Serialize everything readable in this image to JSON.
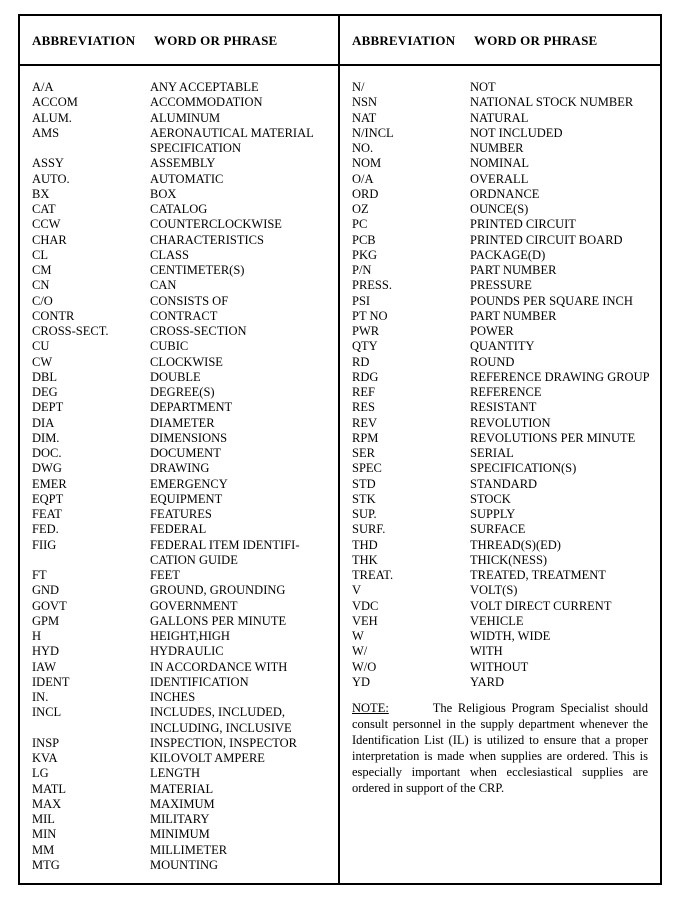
{
  "headers": {
    "abbr": "ABBREVIATION",
    "word": "WORD OR PHRASE"
  },
  "colors": {
    "background": "#ffffff",
    "text": "#000000",
    "rule": "#000000"
  },
  "left": [
    {
      "abbr": "A/A",
      "phrase": "ANY ACCEPTABLE"
    },
    {
      "abbr": "ACCOM",
      "phrase": "ACCOMMODATION"
    },
    {
      "abbr": "ALUM.",
      "phrase": "ALUMINUM"
    },
    {
      "abbr": "AMS",
      "phrase": "AERONAUTICAL MATERIAL SPECIFICATION"
    },
    {
      "abbr": "ASSY",
      "phrase": "ASSEMBLY"
    },
    {
      "abbr": "AUTO.",
      "phrase": "AUTOMATIC"
    },
    {
      "abbr": "BX",
      "phrase": "BOX"
    },
    {
      "abbr": "CAT",
      "phrase": "CATALOG"
    },
    {
      "abbr": "CCW",
      "phrase": "COUNTERCLOCKWISE"
    },
    {
      "abbr": "CHAR",
      "phrase": "CHARACTERISTICS"
    },
    {
      "abbr": "CL",
      "phrase": "CLASS"
    },
    {
      "abbr": "CM",
      "phrase": "CENTIMETER(S)"
    },
    {
      "abbr": "CN",
      "phrase": "CAN"
    },
    {
      "abbr": "C/O",
      "phrase": "CONSISTS OF"
    },
    {
      "abbr": "CONTR",
      "phrase": "CONTRACT"
    },
    {
      "abbr": "CROSS-SECT.",
      "phrase": "CROSS-SECTION"
    },
    {
      "abbr": "CU",
      "phrase": "CUBIC"
    },
    {
      "abbr": "CW",
      "phrase": "CLOCKWISE"
    },
    {
      "abbr": "DBL",
      "phrase": "DOUBLE"
    },
    {
      "abbr": "DEG",
      "phrase": "DEGREE(S)"
    },
    {
      "abbr": "DEPT",
      "phrase": "DEPARTMENT"
    },
    {
      "abbr": "DIA",
      "phrase": "DIAMETER"
    },
    {
      "abbr": "DIM.",
      "phrase": "DIMENSIONS"
    },
    {
      "abbr": "DOC.",
      "phrase": "DOCUMENT"
    },
    {
      "abbr": "DWG",
      "phrase": "DRAWING"
    },
    {
      "abbr": "EMER",
      "phrase": "EMERGENCY"
    },
    {
      "abbr": "EQPT",
      "phrase": "EQUIPMENT"
    },
    {
      "abbr": "FEAT",
      "phrase": "FEATURES"
    },
    {
      "abbr": "FED.",
      "phrase": "FEDERAL"
    },
    {
      "abbr": "FIIG",
      "phrase": "FEDERAL ITEM IDENTIFI- CATION GUIDE"
    },
    {
      "abbr": "FT",
      "phrase": "FEET"
    },
    {
      "abbr": "GND",
      "phrase": "GROUND, GROUNDING"
    },
    {
      "abbr": "GOVT",
      "phrase": "GOVERNMENT"
    },
    {
      "abbr": "GPM",
      "phrase": "GALLONS PER MINUTE"
    },
    {
      "abbr": "H",
      "phrase": "HEIGHT,HIGH"
    },
    {
      "abbr": "HYD",
      "phrase": "HYDRAULIC"
    },
    {
      "abbr": "IAW",
      "phrase": "IN ACCORDANCE WITH"
    },
    {
      "abbr": "IDENT",
      "phrase": "IDENTIFICATION"
    },
    {
      "abbr": "IN.",
      "phrase": "INCHES"
    },
    {
      "abbr": "INCL",
      "phrase": "INCLUDES, INCLUDED, INCLUDING, INCLUSIVE"
    },
    {
      "abbr": "INSP",
      "phrase": "INSPECTION, INSPECTOR"
    },
    {
      "abbr": "KVA",
      "phrase": "KILOVOLT AMPERE"
    },
    {
      "abbr": "LG",
      "phrase": "LENGTH"
    },
    {
      "abbr": "MATL",
      "phrase": "MATERIAL"
    },
    {
      "abbr": "MAX",
      "phrase": "MAXIMUM"
    },
    {
      "abbr": "MIL",
      "phrase": "MILITARY"
    },
    {
      "abbr": "MIN",
      "phrase": "MINIMUM"
    },
    {
      "abbr": "MM",
      "phrase": "MILLIMETER"
    },
    {
      "abbr": "MTG",
      "phrase": "MOUNTING"
    }
  ],
  "right": [
    {
      "abbr": "N/",
      "phrase": "NOT"
    },
    {
      "abbr": "NSN",
      "phrase": "NATIONAL STOCK NUMBER"
    },
    {
      "abbr": "NAT",
      "phrase": "NATURAL"
    },
    {
      "abbr": "N/INCL",
      "phrase": "NOT INCLUDED"
    },
    {
      "abbr": "NO.",
      "phrase": "NUMBER"
    },
    {
      "abbr": "NOM",
      "phrase": "NOMINAL"
    },
    {
      "abbr": "O/A",
      "phrase": "OVERALL"
    },
    {
      "abbr": "ORD",
      "phrase": "ORDNANCE"
    },
    {
      "abbr": "OZ",
      "phrase": "OUNCE(S)"
    },
    {
      "abbr": "PC",
      "phrase": "PRINTED CIRCUIT"
    },
    {
      "abbr": "PCB",
      "phrase": "PRINTED CIRCUIT BOARD"
    },
    {
      "abbr": "PKG",
      "phrase": "PACKAGE(D)"
    },
    {
      "abbr": "P/N",
      "phrase": "PART NUMBER"
    },
    {
      "abbr": "PRESS.",
      "phrase": "PRESSURE"
    },
    {
      "abbr": "PSI",
      "phrase": "POUNDS PER SQUARE INCH"
    },
    {
      "abbr": "PT NO",
      "phrase": "PART NUMBER"
    },
    {
      "abbr": "PWR",
      "phrase": "POWER"
    },
    {
      "abbr": "QTY",
      "phrase": "QUANTITY"
    },
    {
      "abbr": "RD",
      "phrase": "ROUND"
    },
    {
      "abbr": "RDG",
      "phrase": "REFERENCE DRAWING GROUP"
    },
    {
      "abbr": "REF",
      "phrase": "REFERENCE"
    },
    {
      "abbr": "RES",
      "phrase": "RESISTANT"
    },
    {
      "abbr": "REV",
      "phrase": "REVOLUTION"
    },
    {
      "abbr": "RPM",
      "phrase": "REVOLUTIONS PER MINUTE"
    },
    {
      "abbr": "SER",
      "phrase": "SERIAL"
    },
    {
      "abbr": "SPEC",
      "phrase": "SPECIFICATION(S)"
    },
    {
      "abbr": "STD",
      "phrase": "STANDARD"
    },
    {
      "abbr": "STK",
      "phrase": "STOCK"
    },
    {
      "abbr": "SUP.",
      "phrase": "SUPPLY"
    },
    {
      "abbr": "SURF.",
      "phrase": "SURFACE"
    },
    {
      "abbr": "THD",
      "phrase": "THREAD(S)(ED)"
    },
    {
      "abbr": "THK",
      "phrase": "THICK(NESS)"
    },
    {
      "abbr": "TREAT.",
      "phrase": "TREATED, TREATMENT"
    },
    {
      "abbr": "V",
      "phrase": "VOLT(S)"
    },
    {
      "abbr": "VDC",
      "phrase": "VOLT DIRECT CURRENT"
    },
    {
      "abbr": "VEH",
      "phrase": "VEHICLE"
    },
    {
      "abbr": "W",
      "phrase": "WIDTH, WIDE"
    },
    {
      "abbr": "W/",
      "phrase": "WITH"
    },
    {
      "abbr": "W/O",
      "phrase": "WITHOUT"
    },
    {
      "abbr": "YD",
      "phrase": "YARD"
    }
  ],
  "note": {
    "label": "NOTE:",
    "text": "The Religious Program Specialist should consult personnel in the supply department whenever the Identification List (IL) is utilized to ensure that a proper interpretation is made when supplies are ordered. This is especially important when ecclesiastical supplies are ordered in support of the CRP."
  }
}
